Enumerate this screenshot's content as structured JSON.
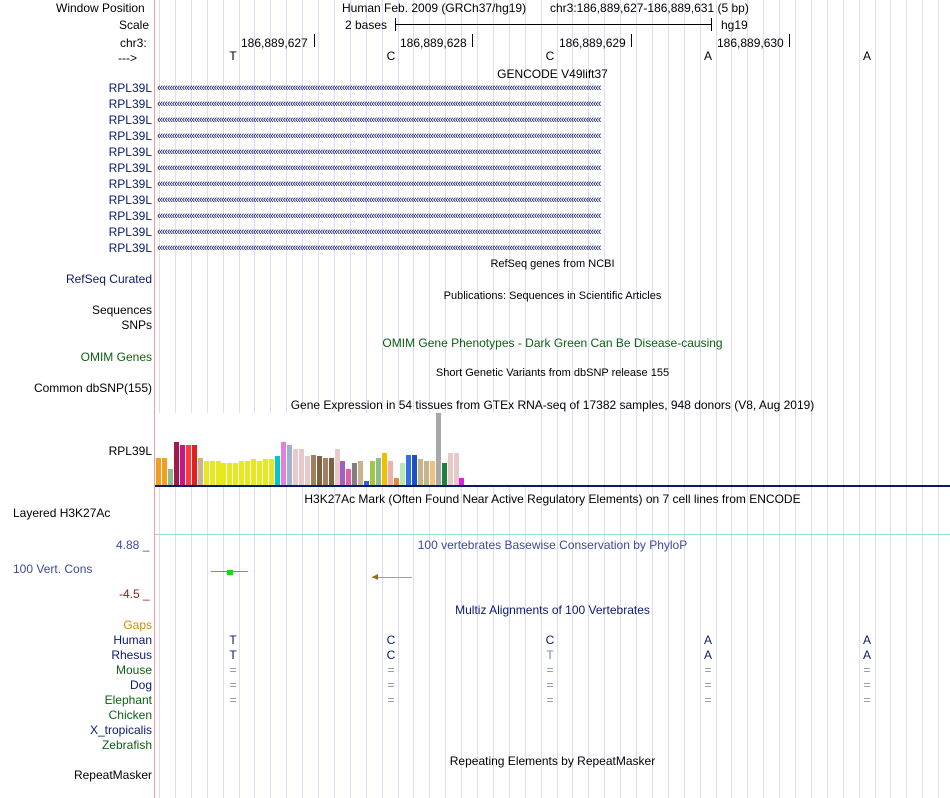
{
  "header": {
    "window_position_label": "Window Position",
    "assembly": "Human Feb. 2009 (GRCh37/hg19)",
    "coordinates": "chr3:186,889,627-186,889,631 (5 bp)",
    "scale_label": "Scale",
    "scale_value": "2 bases",
    "scale_db": "hg19",
    "chrom_label": "chr3:",
    "strand_label": "--->",
    "positions": [
      "186,889,627",
      "186,889,628",
      "186,889,629",
      "186,889,630"
    ]
  },
  "sequence": [
    "T",
    "C",
    "C",
    "A",
    "A"
  ],
  "tracks": {
    "gencode_title": "GENCODE V49lift37",
    "gencode_gene": "RPL39L",
    "gencode_count": 11,
    "refseq_title": "RefSeq genes from NCBI",
    "refseq_label": "RefSeq Curated",
    "pubs_title": "Publications: Sequences in Scientific Articles",
    "sequences_label": "Sequences",
    "snps_label": "SNPs",
    "omim_title": "OMIM Gene Phenotypes - Dark Green Can Be Disease-causing",
    "omim_label": "OMIM Genes",
    "dbsnp_title": "Short Genetic Variants from dbSNP release 155",
    "dbsnp_label": "Common dbSNP(155)",
    "gtex_title": "Gene Expression in 54 tissues from GTEx RNA-seq of 17382 samples, 948 donors (V8, Aug 2019)",
    "gtex_label": "RPL39L",
    "h3k27ac_title": "H3K27Ac Mark (Often Found Near Active Regulatory Elements) on 7 cell lines from ENCODE",
    "h3k27ac_label": "Layered H3K27Ac",
    "phylop_max": "4.88 _",
    "phylop_title": "100 vertebrates Basewise Conservation by PhyloP",
    "phylop_label": "100 Vert. Cons",
    "phylop_min": "-4.5 _",
    "multiz_title": "Multiz Alignments of 100 Vertebrates",
    "repeat_title": "Repeating Elements by RepeatMasker",
    "repeat_label": "RepeatMasker"
  },
  "multiz_species": [
    {
      "name": "Gaps",
      "color": "#d98b00",
      "bases": [
        "",
        "",
        "",
        "",
        ""
      ]
    },
    {
      "name": "Human",
      "color": "#0a1a6b",
      "bases": [
        "T",
        "C",
        "C",
        "A",
        "A"
      ]
    },
    {
      "name": "Rhesus",
      "color": "#0a1a6b",
      "bases": [
        "T",
        "C",
        "T",
        "A",
        "A"
      ]
    },
    {
      "name": "Mouse",
      "color": "#0b5f12",
      "bases": [
        "=",
        "=",
        "=",
        "=",
        "="
      ]
    },
    {
      "name": "Dog",
      "color": "#0a1a6b",
      "bases": [
        "=",
        "=",
        "=",
        "=",
        "="
      ]
    },
    {
      "name": "Elephant",
      "color": "#0b5f12",
      "bases": [
        "=",
        "=",
        "=",
        "=",
        "="
      ]
    },
    {
      "name": "Chicken",
      "color": "#0b5f12",
      "bases": [
        "",
        "",
        "",
        "",
        ""
      ]
    },
    {
      "name": "X_tropicalis",
      "color": "#0a1a6b",
      "bases": [
        "",
        "",
        "",
        "",
        ""
      ]
    },
    {
      "name": "Zebrafish",
      "color": "#0b5f12",
      "bases": [
        "",
        "",
        "",
        "",
        ""
      ]
    }
  ],
  "gtex_bars": [
    {
      "value": 0.38,
      "color": "#f0a020"
    },
    {
      "value": 0.38,
      "color": "#f0a020"
    },
    {
      "value": 0.22,
      "color": "#8fbc8f"
    },
    {
      "value": 0.6,
      "color": "#a01b4a"
    },
    {
      "value": 0.55,
      "color": "#c71585"
    },
    {
      "value": 0.55,
      "color": "#ff3b3b"
    },
    {
      "value": 0.55,
      "color": "#dd2222"
    },
    {
      "value": 0.38,
      "color": "#c8b48c"
    },
    {
      "value": 0.33,
      "color": "#e8e820"
    },
    {
      "value": 0.33,
      "color": "#e8e820"
    },
    {
      "value": 0.33,
      "color": "#e8e820"
    },
    {
      "value": 0.3,
      "color": "#e8e820"
    },
    {
      "value": 0.3,
      "color": "#e8e820"
    },
    {
      "value": 0.3,
      "color": "#e8e820"
    },
    {
      "value": 0.33,
      "color": "#e8e820"
    },
    {
      "value": 0.33,
      "color": "#e8e820"
    },
    {
      "value": 0.36,
      "color": "#e8e820"
    },
    {
      "value": 0.33,
      "color": "#e8e820"
    },
    {
      "value": 0.36,
      "color": "#e8e820"
    },
    {
      "value": 0.36,
      "color": "#e8e820"
    },
    {
      "value": 0.4,
      "color": "#00c8c8"
    },
    {
      "value": 0.6,
      "color": "#e080e0"
    },
    {
      "value": 0.55,
      "color": "#a0b0d0"
    },
    {
      "value": 0.5,
      "color": "#e8c8c8"
    },
    {
      "value": 0.5,
      "color": "#e8c8c8"
    },
    {
      "value": 0.4,
      "color": "#e8c8c8"
    },
    {
      "value": 0.42,
      "color": "#a08060"
    },
    {
      "value": 0.4,
      "color": "#806040"
    },
    {
      "value": 0.38,
      "color": "#a08060"
    },
    {
      "value": 0.38,
      "color": "#806040"
    },
    {
      "value": 0.5,
      "color": "#e8c8c8"
    },
    {
      "value": 0.33,
      "color": "#a060c0"
    },
    {
      "value": 0.22,
      "color": "#e060a0"
    },
    {
      "value": 0.3,
      "color": "#808080"
    },
    {
      "value": 0.33,
      "color": "#c8b48c"
    },
    {
      "value": 0.05,
      "color": "#3060e0"
    },
    {
      "value": 0.33,
      "color": "#a0c840"
    },
    {
      "value": 0.38,
      "color": "#8fbc8f"
    },
    {
      "value": 0.45,
      "color": "#f0c000"
    },
    {
      "value": 0.33,
      "color": "#f0b0b0"
    },
    {
      "value": 0.1,
      "color": "#e09030"
    },
    {
      "value": 0.3,
      "color": "#b8e8b8"
    },
    {
      "value": 0.42,
      "color": "#3070e0"
    },
    {
      "value": 0.42,
      "color": "#2050c0"
    },
    {
      "value": 0.36,
      "color": "#c8b48c"
    },
    {
      "value": 0.33,
      "color": "#c8b48c"
    },
    {
      "value": 0.33,
      "color": "#f0c080"
    },
    {
      "value": 1.0,
      "color": "#a8a8a8"
    },
    {
      "value": 0.3,
      "color": "#208040"
    },
    {
      "value": 0.45,
      "color": "#e8c8c8"
    },
    {
      "value": 0.45,
      "color": "#e8c8c8"
    },
    {
      "value": 0.1,
      "color": "#e020e0"
    }
  ],
  "colors": {
    "navy": "#0a1a6b",
    "green": "#0b5f12",
    "divider": "#f0a0a0",
    "grid": "#dcdcf4",
    "conservation": "#3b4a9a"
  }
}
